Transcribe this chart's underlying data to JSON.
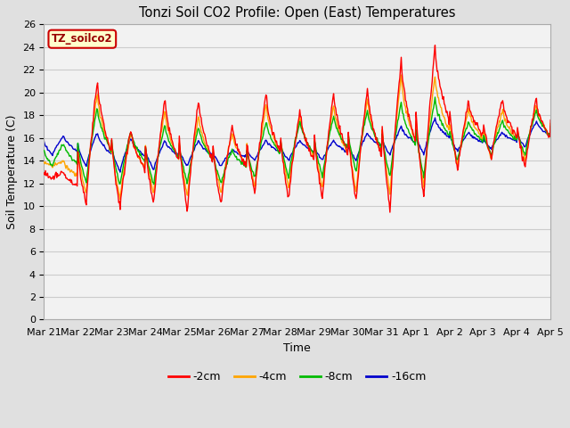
{
  "title": "Tonzi Soil CO2 Profile: Open (East) Temperatures",
  "ylabel": "Soil Temperature (C)",
  "xlabel": "Time",
  "watermark": "TZ_soilco2",
  "ylim": [
    0,
    26
  ],
  "yticks": [
    0,
    2,
    4,
    6,
    8,
    10,
    12,
    14,
    16,
    18,
    20,
    22,
    24,
    26
  ],
  "line_colors": {
    "-2cm": "#ff0000",
    "-4cm": "#ffa500",
    "-8cm": "#00bb00",
    "-16cm": "#0000cc"
  },
  "line_width": 1.0,
  "fig_bg": "#e0e0e0",
  "plot_bg": "#f2f2f2",
  "x_labels": [
    "Mar 21",
    "Mar 22",
    "Mar 23",
    "Mar 24",
    "Mar 25",
    "Mar 26",
    "Mar 27",
    "Mar 28",
    "Mar 29",
    "Mar 30",
    "Mar 31",
    "Apr 1",
    "Apr 2",
    "Apr 3",
    "Apr 4",
    "Apr 5"
  ],
  "n_days": 15,
  "pts_per_day": 48
}
